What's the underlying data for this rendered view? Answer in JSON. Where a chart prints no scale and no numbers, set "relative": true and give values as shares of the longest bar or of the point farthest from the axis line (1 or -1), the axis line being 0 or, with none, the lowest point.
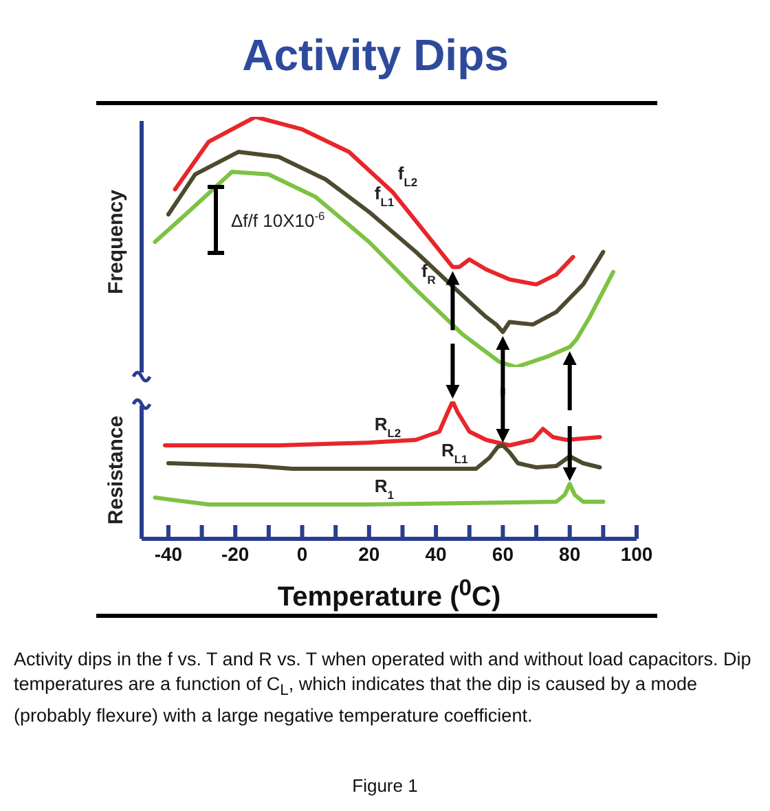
{
  "chart_data": [
    {
      "type": "line",
      "title": "Activity Dips",
      "ylabel": "Frequency",
      "relative": true,
      "xlim": [
        -48,
        100
      ],
      "tick_labels": false,
      "annotations": [
        "Δf/f 10X10$^{-6}$"
      ],
      "series": [
        {
          "name": "f$_{L2}$",
          "color": "#e8262a",
          "x": [
            -38,
            -28,
            -14,
            0,
            14,
            27,
            45,
            47,
            50,
            55,
            62,
            70,
            76,
            81
          ],
          "values": [
            0.71,
            0.9,
            1,
            0.95,
            0.86,
            0.7,
            0.4,
            0.4,
            0.43,
            0.39,
            0.35,
            0.33,
            0.37,
            0.44
          ]
        },
        {
          "name": "f$_{L1}$",
          "color": "#4d4a2e",
          "x": [
            -40,
            -32,
            -19,
            -7,
            7,
            20,
            34,
            46,
            55,
            58,
            60,
            62,
            69,
            76,
            84,
            90
          ],
          "values": [
            0.61,
            0.77,
            0.86,
            0.84,
            0.75,
            0.62,
            0.46,
            0.31,
            0.2,
            0.17,
            0.14,
            0.18,
            0.17,
            0.22,
            0.33,
            0.46
          ]
        },
        {
          "name": "f$_{R}$",
          "color": "#7dc242",
          "x": [
            -44,
            -34,
            -21,
            -10,
            4,
            20,
            34,
            48,
            59,
            64,
            73,
            80,
            82,
            86,
            93
          ],
          "values": [
            0.5,
            0.62,
            0.78,
            0.77,
            0.68,
            0.5,
            0.31,
            0.13,
            0.02,
            0,
            0.04,
            0.08,
            0.11,
            0.2,
            0.38
          ]
        }
      ]
    },
    {
      "type": "line",
      "ylabel": "Resistance",
      "xlabel": "Temperature ($^{0}$C)",
      "relative": true,
      "xlim": [
        -48,
        100
      ],
      "xticks": [
        -40,
        {
          "value": -30,
          "label": null
        },
        -20,
        {
          "value": -10,
          "label": null
        },
        0,
        {
          "value": 10,
          "label": null
        },
        20,
        {
          "value": 30,
          "label": null
        },
        40,
        {
          "value": 50,
          "label": null
        },
        60,
        {
          "value": 70,
          "label": null
        },
        80,
        {
          "value": 90,
          "label": null
        },
        100
      ],
      "tick_labels": "x",
      "annotations": [
        "Activity dips in the f vs. T and R vs. T when operated with and without load capacitors.  Dip temperatures are a function of C$_{L}$, which indicates that the dip is caused by a mode (probably flexure) with a large negative temperature coefficient.",
        "Figure 1"
      ],
      "series": [
        {
          "name": "R$_{L2}$",
          "color": "#e8262a",
          "x": [
            -41,
            -7,
            20,
            34,
            41,
            43.5,
            45,
            46.5,
            50,
            55,
            62,
            69,
            72,
            75,
            79,
            89
          ],
          "values": [
            0.68,
            0.68,
            0.7,
            0.72,
            0.78,
            0.92,
            1,
            0.92,
            0.78,
            0.72,
            0.68,
            0.72,
            0.8,
            0.74,
            0.72,
            0.74
          ]
        },
        {
          "name": "R$_{L1}$",
          "color": "#4d4a2e",
          "x": [
            -40,
            -14,
            -3,
            20,
            52,
            56,
            58.5,
            60,
            62,
            64.5,
            70,
            76,
            80,
            84,
            89
          ],
          "values": [
            0.55,
            0.53,
            0.51,
            0.51,
            0.51,
            0.59,
            0.67,
            0.68,
            0.63,
            0.55,
            0.52,
            0.53,
            0.6,
            0.55,
            0.52
          ]
        },
        {
          "name": "R$_{1}$",
          "color": "#7dc242",
          "x": [
            -44,
            -28,
            20,
            76,
            78.5,
            80,
            81.5,
            84,
            90
          ],
          "values": [
            0.3,
            0.25,
            0.25,
            0.27,
            0.32,
            0.4,
            0.32,
            0.27,
            0.27
          ]
        }
      ]
    }
  ]
}
